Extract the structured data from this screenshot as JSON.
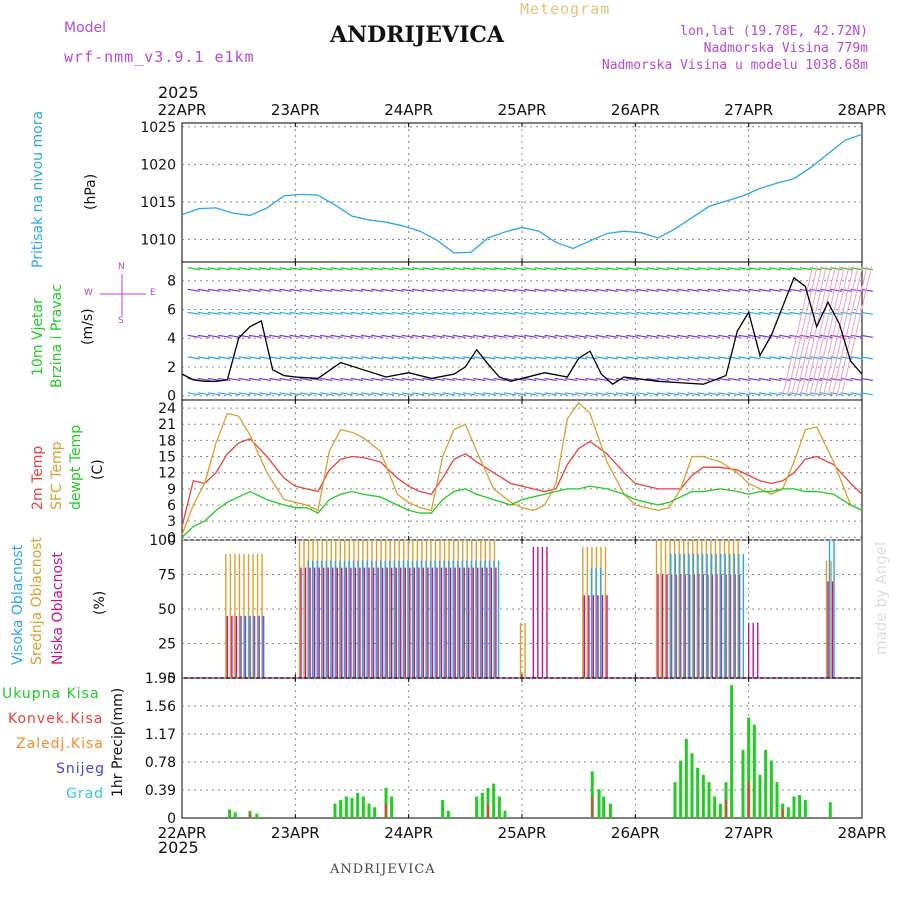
{
  "header": {
    "model_label": "Model",
    "model_name": "wrf-nmm_v3.9.1 e1km",
    "title": "ANDRIJEVICA",
    "subtitle": "Meteogram",
    "coords": "lon,lat (19.78E, 42.72N)",
    "altitude": "Nadmorska Visina 779m",
    "model_altitude": "Nadmorska Visina u modelu 1038.68m",
    "credit": "made by Angel",
    "footer_title": "ANDRIJEVICA",
    "year_top": "2025",
    "year_bottom": "2025"
  },
  "colors": {
    "pressure": "#2aa7e6",
    "wind_speed": "#000000",
    "temp2m": "#e8423f",
    "sfc_temp": "#d9a032",
    "dewpt": "#22cc22",
    "high_cloud": "#2aa7e6",
    "mid_cloud": "#d9a032",
    "low_cloud": "#c0148c",
    "precip_total": "#22cc22",
    "precip_conv": "#e8423f",
    "precip_frz": "#ff8a2a",
    "snow": "#4444dd",
    "hail": "#33cccc",
    "side_purple": "#b44ad8"
  },
  "chart_data": {
    "type": "line",
    "x_dates": [
      "22APR",
      "23APR",
      "24APR",
      "25APR",
      "26APR",
      "27APR",
      "28APR"
    ],
    "x_range_days": [
      0,
      6
    ],
    "panels": [
      {
        "id": "pressure",
        "labels": [
          "Pritisak na nivou mora"
        ],
        "unit": "(hPa)",
        "ylim": [
          1007,
          1025.5
        ],
        "ticks": [
          1010,
          1015,
          1020,
          1025
        ],
        "series": [
          {
            "name": "Pritisak na nivou mora",
            "x": [
              0,
              0.15,
              0.3,
              0.45,
              0.6,
              0.75,
              0.9,
              1.05,
              1.2,
              1.35,
              1.5,
              1.65,
              1.8,
              1.95,
              2.1,
              2.25,
              2.4,
              2.55,
              2.7,
              2.85,
              3.0,
              3.15,
              3.3,
              3.45,
              3.6,
              3.75,
              3.9,
              4.05,
              4.2,
              4.35,
              4.5,
              4.65,
              4.8,
              4.95,
              5.1,
              5.25,
              5.4,
              5.55,
              5.7,
              5.85,
              6.0
            ],
            "y": [
              1013.3,
              1014.1,
              1014.2,
              1013.5,
              1013.2,
              1014.2,
              1015.8,
              1016.0,
              1015.9,
              1014.6,
              1013.1,
              1012.6,
              1012.3,
              1011.8,
              1011.1,
              1009.9,
              1008.2,
              1008.3,
              1010.2,
              1011.0,
              1011.6,
              1011.1,
              1009.6,
              1008.8,
              1009.8,
              1010.8,
              1011.1,
              1010.9,
              1010.2,
              1011.4,
              1012.9,
              1014.4,
              1015.1,
              1015.8,
              1016.8,
              1017.5,
              1018.1,
              1019.6,
              1021.4,
              1023.2,
              1024.0
            ]
          }
        ]
      },
      {
        "id": "wind",
        "labels": [
          "10m Vjetar",
          "Brzina i Pravac"
        ],
        "unit": "(m/s)",
        "ylim": [
          -0.3,
          9.3
        ],
        "ticks": [
          0,
          2,
          4,
          6,
          8
        ],
        "compass": {
          "n": "N",
          "s": "S",
          "e": "E",
          "w": "W"
        },
        "series": [
          {
            "name": "10m Vjetar",
            "x": [
              0,
              0.1,
              0.2,
              0.3,
              0.4,
              0.5,
              0.6,
              0.7,
              0.8,
              0.9,
              1.0,
              1.2,
              1.4,
              1.6,
              1.8,
              2.0,
              2.2,
              2.4,
              2.5,
              2.6,
              2.7,
              2.8,
              2.9,
              3.0,
              3.2,
              3.4,
              3.5,
              3.6,
              3.7,
              3.8,
              3.9,
              4.0,
              4.2,
              4.4,
              4.6,
              4.8,
              4.9,
              5.0,
              5.1,
              5.2,
              5.3,
              5.4,
              5.5,
              5.6,
              5.7,
              5.8,
              5.9,
              6.0
            ],
            "y": [
              1.5,
              1.1,
              1.0,
              1.0,
              1.1,
              4.0,
              4.8,
              5.2,
              1.8,
              1.4,
              1.3,
              1.2,
              2.3,
              1.8,
              1.3,
              1.6,
              1.2,
              1.5,
              2.0,
              3.2,
              2.2,
              1.3,
              1.0,
              1.2,
              1.6,
              1.3,
              2.6,
              3.1,
              1.5,
              0.8,
              1.3,
              1.2,
              1.0,
              0.9,
              0.8,
              1.4,
              4.5,
              5.8,
              2.8,
              4.2,
              6.2,
              8.2,
              7.6,
              4.8,
              6.5,
              5.0,
              2.4,
              1.5
            ]
          }
        ]
      },
      {
        "id": "temp",
        "labels": [
          "2m Temp",
          "SFC Temp",
          "dewpt Temp"
        ],
        "unit": "(C)",
        "ylim": [
          -0.5,
          25.5
        ],
        "ticks": [
          0,
          3,
          6,
          9,
          12,
          15,
          18,
          21,
          24
        ],
        "series": [
          {
            "name": "2m Temp",
            "x": [
              0,
              0.1,
              0.2,
              0.3,
              0.4,
              0.5,
              0.6,
              0.75,
              0.9,
              1.0,
              1.1,
              1.2,
              1.3,
              1.4,
              1.5,
              1.6,
              1.75,
              1.9,
              2.0,
              2.1,
              2.2,
              2.3,
              2.4,
              2.5,
              2.6,
              2.75,
              2.9,
              3.0,
              3.1,
              3.2,
              3.3,
              3.4,
              3.5,
              3.6,
              3.75,
              3.9,
              4.0,
              4.1,
              4.2,
              4.3,
              4.4,
              4.5,
              4.6,
              4.75,
              4.9,
              5.0,
              5.1,
              5.2,
              5.3,
              5.4,
              5.5,
              5.6,
              5.75,
              5.9,
              6.0
            ],
            "y": [
              2,
              10.5,
              10,
              12,
              15.5,
              17.5,
              18.3,
              15,
              11,
              9.5,
              9,
              8.5,
              12.5,
              14.5,
              15,
              14.8,
              14,
              11,
              9.5,
              8.5,
              8,
              11,
              14.5,
              15.5,
              14,
              12,
              10,
              9.5,
              9,
              8.5,
              9,
              13.5,
              16.5,
              17.8,
              15.5,
              12,
              10,
              9.5,
              9,
              9,
              9,
              11.5,
              13,
              13,
              12.5,
              11.5,
              10.5,
              10,
              10.5,
              12,
              14.5,
              15,
              13.5,
              10,
              8
            ]
          },
          {
            "name": "SFC Temp",
            "x": [
              0,
              0.1,
              0.2,
              0.3,
              0.4,
              0.5,
              0.6,
              0.75,
              0.9,
              1.0,
              1.1,
              1.2,
              1.3,
              1.4,
              1.5,
              1.6,
              1.75,
              1.9,
              2.0,
              2.1,
              2.2,
              2.3,
              2.4,
              2.5,
              2.6,
              2.75,
              2.9,
              3.0,
              3.1,
              3.2,
              3.3,
              3.4,
              3.5,
              3.6,
              3.75,
              3.9,
              4.0,
              4.1,
              4.2,
              4.3,
              4.4,
              4.5,
              4.6,
              4.75,
              4.9,
              5.0,
              5.1,
              5.2,
              5.3,
              5.4,
              5.5,
              5.6,
              5.75,
              5.9,
              6.0
            ],
            "y": [
              0.5,
              6,
              10,
              17.5,
              23,
              22.5,
              19,
              12,
              7,
              6.5,
              6,
              5,
              16,
              20,
              19.5,
              18.5,
              16,
              8,
              6.5,
              5.5,
              5,
              15,
              20,
              21,
              16,
              9,
              6.5,
              5.5,
              5,
              6,
              10,
              22,
              25,
              23,
              14,
              8,
              6,
              5.5,
              5,
              5.5,
              9,
              15,
              15,
              14,
              12,
              10,
              9,
              8,
              9,
              14,
              20,
              20.5,
              14,
              6,
              5
            ]
          },
          {
            "name": "dewpt Temp",
            "x": [
              0,
              0.1,
              0.2,
              0.3,
              0.4,
              0.5,
              0.6,
              0.75,
              0.9,
              1.0,
              1.1,
              1.2,
              1.3,
              1.4,
              1.5,
              1.6,
              1.75,
              1.9,
              2.0,
              2.1,
              2.2,
              2.3,
              2.4,
              2.5,
              2.6,
              2.75,
              2.9,
              3.0,
              3.1,
              3.2,
              3.3,
              3.4,
              3.5,
              3.6,
              3.75,
              3.9,
              4.0,
              4.1,
              4.2,
              4.3,
              4.4,
              4.5,
              4.6,
              4.75,
              4.9,
              5.0,
              5.1,
              5.2,
              5.3,
              5.4,
              5.5,
              5.6,
              5.75,
              5.9,
              6.0
            ],
            "y": [
              0,
              2,
              3,
              5,
              6.5,
              7.5,
              8.5,
              7,
              6,
              5.5,
              5.5,
              4.5,
              7,
              8,
              8.5,
              8,
              7.5,
              6,
              5,
              4.5,
              4.5,
              7,
              8.5,
              9,
              8,
              7,
              6,
              7,
              7.5,
              8,
              8.5,
              9,
              9,
              9.5,
              9,
              8,
              7,
              6.5,
              6,
              6.5,
              7.5,
              8.5,
              8.5,
              9,
              8.5,
              8,
              8.5,
              8.5,
              9,
              9,
              8.5,
              8.5,
              8,
              6,
              5
            ]
          }
        ]
      },
      {
        "id": "cloud",
        "labels": [
          "Visoka Oblacnost",
          "Srednja Oblacnost",
          "Niska Oblacnost"
        ],
        "unit": "(%)",
        "ylim": [
          0,
          100
        ],
        "ticks": [
          0,
          25,
          50,
          75,
          100
        ],
        "series": [
          {
            "name": "Srednja Oblacnost",
            "intervals": [
              [
                0.4,
                0.75,
                0.9
              ],
              [
                1.05,
                2.8,
                1.0
              ],
              [
                3.0,
                3.05,
                0.4
              ],
              [
                3.55,
                3.75,
                0.95
              ],
              [
                4.2,
                4.95,
                1.0
              ],
              [
                5.7,
                5.77,
                0.85
              ]
            ]
          },
          {
            "name": "Niska Oblacnost",
            "intervals": [
              [
                0.4,
                0.75,
                0.45
              ],
              [
                1.05,
                2.8,
                0.8
              ],
              [
                3.1,
                3.25,
                0.95
              ],
              [
                3.55,
                3.75,
                0.6
              ],
              [
                4.2,
                4.95,
                0.75
              ],
              [
                5.0,
                5.1,
                0.4
              ],
              [
                5.7,
                5.77,
                0.7
              ]
            ]
          },
          {
            "name": "Visoka Oblacnost",
            "intervals": [
              [
                0.5,
                0.7,
                0.45
              ],
              [
                1.1,
                2.8,
                0.85
              ],
              [
                3.6,
                3.7,
                0.8
              ],
              [
                4.3,
                4.95,
                0.9
              ],
              [
                5.7,
                5.75,
                1.0
              ]
            ]
          }
        ]
      },
      {
        "id": "precip",
        "labels": [
          "1hr Precip",
          "(mm)"
        ],
        "unit": "",
        "ylim": [
          0,
          1.95
        ],
        "ticks": [
          0,
          0.39,
          0.78,
          1.17,
          1.56,
          1.95
        ],
        "tick_labels": [
          "0",
          "0.39",
          "0.78",
          "1.17",
          "1.56",
          "1.95"
        ],
        "legend": [
          "Ukupna Kisa",
          "Konvek.Kisa",
          "Zaledj.Kisa",
          "Snijeg",
          "Grad"
        ],
        "series": [
          {
            "name": "Ukupna Kisa",
            "x": [
              0.42,
              0.47,
              0.6,
              0.66,
              1.35,
              1.4,
              1.45,
              1.5,
              1.55,
              1.6,
              1.65,
              1.7,
              1.8,
              1.85,
              2.3,
              2.35,
              2.6,
              2.65,
              2.7,
              2.75,
              2.8,
              2.85,
              3.62,
              3.68,
              3.72,
              3.78,
              4.35,
              4.4,
              4.45,
              4.5,
              4.55,
              4.6,
              4.65,
              4.7,
              4.75,
              4.8,
              4.85,
              4.95,
              5.0,
              5.05,
              5.1,
              5.15,
              5.2,
              5.25,
              5.3,
              5.35,
              5.4,
              5.45,
              5.5,
              5.72
            ],
            "y": [
              0.12,
              0.08,
              0.1,
              0.06,
              0.2,
              0.25,
              0.3,
              0.28,
              0.35,
              0.3,
              0.2,
              0.15,
              0.42,
              0.3,
              0.25,
              0.1,
              0.3,
              0.35,
              0.42,
              0.48,
              0.3,
              0.1,
              0.65,
              0.4,
              0.3,
              0.2,
              0.5,
              0.8,
              1.1,
              0.9,
              0.7,
              0.6,
              0.5,
              0.3,
              0.2,
              0.5,
              1.85,
              0.95,
              1.4,
              1.3,
              0.6,
              0.95,
              0.8,
              0.5,
              0.2,
              0.15,
              0.3,
              0.32,
              0.25,
              0.22
            ]
          },
          {
            "name": "Konvek.Kisa",
            "x": [
              0.6,
              1.8,
              2.7,
              3.62,
              4.8,
              5.0,
              5.3
            ],
            "y": [
              0.06,
              0.2,
              0.2,
              0.3,
              0.25,
              0.5,
              0.12
            ]
          }
        ]
      }
    ]
  }
}
